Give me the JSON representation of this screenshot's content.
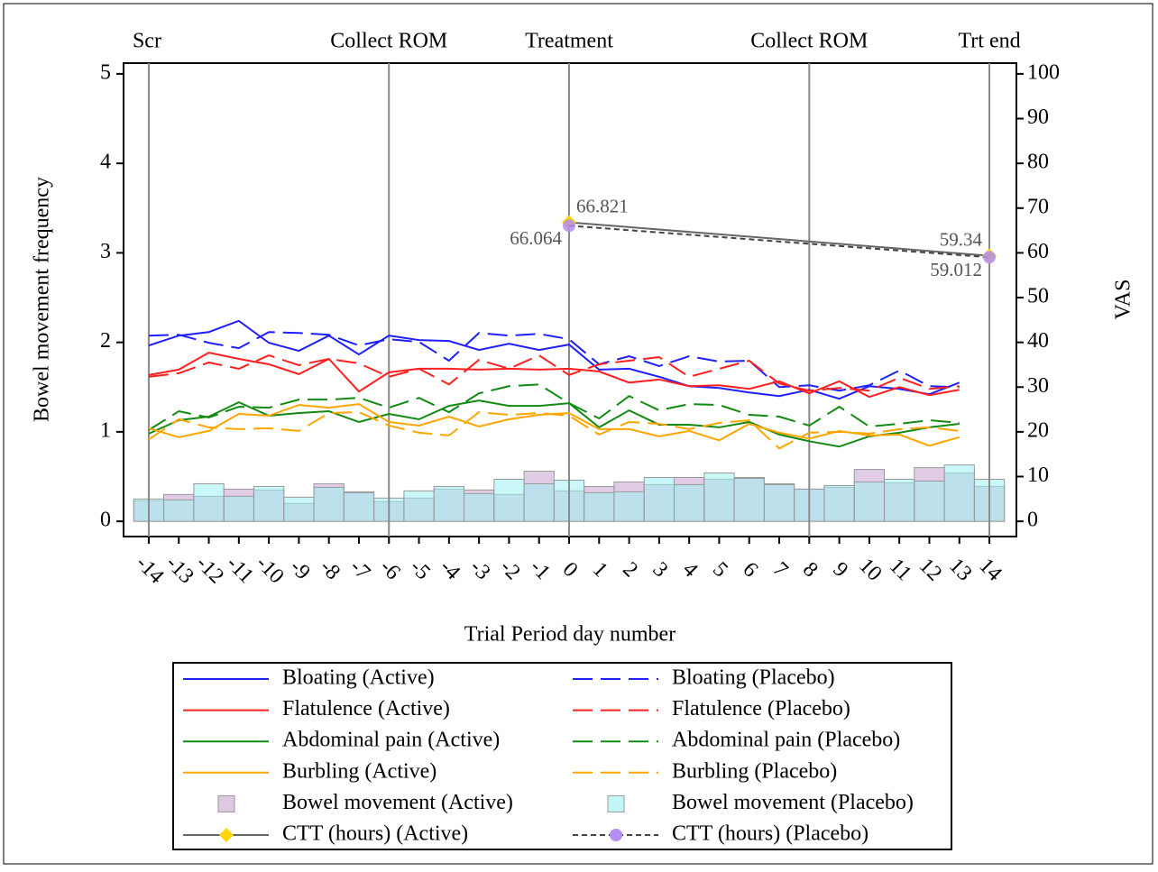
{
  "chart_data": {
    "type": "combo",
    "x_label": "Trial Period day number",
    "y_label": "Bowel movement frequency",
    "y2_label": "VAS",
    "x": [
      -14,
      -13,
      -12,
      -11,
      -10,
      -9,
      -8,
      -7,
      -6,
      -5,
      -4,
      -3,
      -2,
      -1,
      0,
      1,
      2,
      3,
      4,
      5,
      6,
      7,
      8,
      9,
      10,
      11,
      12,
      13,
      14
    ],
    "xlim": [
      -14.84,
      14.9
    ],
    "xticks": [
      -14,
      -13,
      -12,
      -11,
      -10,
      -9,
      -8,
      -7,
      -6,
      -5,
      -4,
      -3,
      -2,
      -1,
      0,
      1,
      2,
      3,
      4,
      5,
      6,
      7,
      8,
      9,
      10,
      11,
      12,
      13,
      14
    ],
    "ylim": [
      -0.17,
      5.12
    ],
    "yticks": [
      0,
      1,
      2,
      3,
      4,
      5
    ],
    "y2lim": [
      -3.4,
      102.4
    ],
    "y2ticks": [
      0,
      10,
      20,
      30,
      40,
      50,
      60,
      70,
      80,
      90,
      100
    ],
    "reference_lines": [
      {
        "x": -14,
        "label": "Scr"
      },
      {
        "x": -6,
        "label": "Collect ROM"
      },
      {
        "x": 0,
        "label": "Treatment"
      },
      {
        "x": 8,
        "label": "Collect ROM"
      },
      {
        "x": 14,
        "label": "Trt end"
      }
    ],
    "series": [
      {
        "name": "Bloating (Active)",
        "type": "line",
        "axis": "y2",
        "color": "#1f1fff",
        "dash": false,
        "values": [
          39.3,
          41.5,
          42.3,
          44.8,
          39.9,
          38.1,
          41.5,
          37.3,
          41.5,
          40.5,
          40.3,
          38.3,
          39.7,
          38.3,
          39.5,
          33.9,
          34.1,
          32.3,
          30.2,
          29.8,
          28.8,
          28.0,
          29.4,
          27.4,
          30.2,
          29.6,
          28.4,
          31.0,
          null
        ]
      },
      {
        "name": "Bloating (Placebo)",
        "type": "line",
        "axis": "y2",
        "color": "#1f1fff",
        "dash": true,
        "values": [
          41.5,
          41.7,
          39.9,
          38.7,
          42.3,
          42.1,
          41.7,
          39.3,
          40.7,
          40.1,
          35.9,
          42.1,
          41.5,
          41.9,
          40.7,
          35.1,
          36.9,
          34.7,
          36.9,
          35.7,
          35.9,
          30.0,
          30.4,
          29.2,
          30.4,
          33.7,
          30.2,
          30.0,
          null
        ]
      },
      {
        "name": "Flatulence (Active)",
        "type": "line",
        "axis": "y2",
        "color": "#ff1f1f",
        "dash": false,
        "values": [
          32.7,
          33.9,
          37.7,
          36.3,
          35.1,
          32.9,
          36.3,
          29.0,
          33.3,
          34.1,
          34.1,
          33.9,
          34.1,
          33.9,
          34.1,
          33.5,
          31.0,
          31.7,
          30.2,
          30.4,
          29.6,
          31.3,
          28.6,
          31.3,
          27.8,
          30.0,
          28.2,
          29.4,
          null
        ]
      },
      {
        "name": "Flatulence (Placebo)",
        "type": "line",
        "axis": "y2",
        "color": "#ff1f1f",
        "dash": true,
        "values": [
          32.3,
          33.1,
          35.5,
          34.1,
          37.1,
          34.9,
          36.3,
          35.3,
          32.3,
          34.1,
          30.6,
          36.1,
          34.1,
          37.1,
          32.7,
          35.1,
          35.9,
          36.7,
          32.3,
          34.1,
          35.9,
          30.8,
          29.2,
          29.8,
          29.2,
          32.1,
          29.6,
          30.2,
          null
        ]
      },
      {
        "name": "Abdominal pain (Active)",
        "type": "line",
        "axis": "y2",
        "color": "#128a12",
        "dash": false,
        "values": [
          19.6,
          22.6,
          23.4,
          26.6,
          23.6,
          24.2,
          24.6,
          22.2,
          24.0,
          22.8,
          25.8,
          27.0,
          25.8,
          25.8,
          26.4,
          21.0,
          24.8,
          21.6,
          21.6,
          21.0,
          22.2,
          19.4,
          17.9,
          16.7,
          19.0,
          19.8,
          21.0,
          21.8,
          null
        ]
      },
      {
        "name": "Abdominal pain (Placebo)",
        "type": "line",
        "axis": "y2",
        "color": "#128a12",
        "dash": true,
        "values": [
          20.4,
          24.6,
          23.2,
          25.6,
          25.4,
          27.2,
          27.2,
          27.6,
          25.4,
          27.6,
          24.4,
          28.6,
          30.2,
          30.6,
          26.4,
          23.0,
          28.0,
          24.8,
          26.2,
          26.0,
          23.8,
          23.4,
          21.4,
          25.6,
          21.2,
          21.8,
          22.6,
          22.0,
          null
        ]
      },
      {
        "name": "Burbling (Active)",
        "type": "line",
        "axis": "y2",
        "color": "#ffa500",
        "dash": false,
        "values": [
          20.8,
          18.8,
          20.2,
          24.0,
          23.6,
          26.0,
          25.4,
          26.2,
          22.2,
          21.4,
          23.4,
          21.2,
          22.8,
          23.8,
          24.2,
          20.6,
          20.6,
          19.0,
          20.2,
          18.1,
          21.8,
          19.8,
          18.5,
          20.2,
          19.2,
          19.4,
          16.9,
          18.8,
          null
        ]
      },
      {
        "name": "Burbling (Placebo)",
        "type": "line",
        "axis": "y2",
        "color": "#ffa500",
        "dash": true,
        "values": [
          18.3,
          22.8,
          21.0,
          20.6,
          20.8,
          20.2,
          24.2,
          24.4,
          21.4,
          19.8,
          19.2,
          24.4,
          23.8,
          24.2,
          23.6,
          19.4,
          22.2,
          21.8,
          20.6,
          22.0,
          22.6,
          16.3,
          19.8,
          20.0,
          19.6,
          20.6,
          21.0,
          20.2,
          null
        ]
      },
      {
        "name": "Bowel movement (Active)",
        "type": "bar",
        "axis": "y",
        "color": "#c9a3cf",
        "values": [
          0.23,
          0.3,
          0.28,
          0.36,
          0.35,
          0.2,
          0.42,
          0.33,
          0.22,
          0.26,
          0.36,
          0.35,
          0.3,
          0.56,
          0.34,
          0.39,
          0.44,
          0.41,
          0.49,
          0.47,
          0.49,
          0.42,
          0.36,
          0.38,
          0.58,
          0.43,
          0.6,
          0.54,
          0.39
        ]
      },
      {
        "name": "Bowel movement (Placebo)",
        "type": "bar",
        "axis": "y",
        "color": "#9ff0f2",
        "values": [
          0.25,
          0.24,
          0.42,
          0.28,
          0.39,
          0.27,
          0.38,
          0.32,
          0.26,
          0.34,
          0.39,
          0.31,
          0.47,
          0.42,
          0.46,
          0.32,
          0.33,
          0.49,
          0.41,
          0.54,
          0.48,
          0.41,
          0.36,
          0.4,
          0.44,
          0.47,
          0.45,
          0.63,
          0.47
        ]
      },
      {
        "name": "CTT (hours) (Active)",
        "type": "scatter-line",
        "axis": "y2",
        "color": "#ffd700",
        "line_color": "#666666",
        "dash": false,
        "marker": "diamond",
        "x": [
          0,
          14
        ],
        "values": [
          66.821,
          59.34
        ]
      },
      {
        "name": "CTT (hours) (Placebo)",
        "type": "scatter-line",
        "axis": "y2",
        "color": "#b48ef0",
        "line_color": "#444444",
        "dash": true,
        "marker": "circle",
        "x": [
          0,
          14
        ],
        "values": [
          66.064,
          59.012
        ]
      }
    ]
  }
}
